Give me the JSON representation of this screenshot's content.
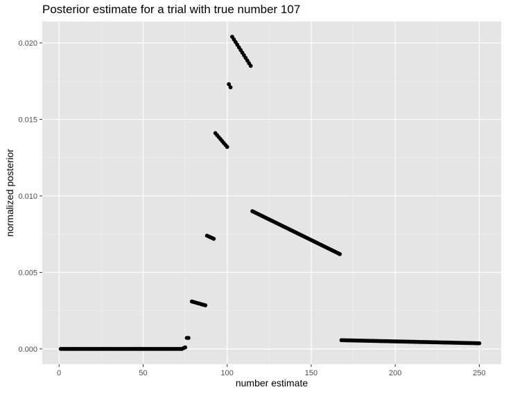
{
  "chart_data": {
    "type": "scatter",
    "title": "Posterior estimate for a trial with true number 107",
    "xlabel": "number estimate",
    "ylabel": "normalized posterior",
    "xlim": [
      -10,
      263
    ],
    "ylim": [
      -0.001,
      0.0214
    ],
    "x_ticks": [
      0,
      50,
      100,
      150,
      200,
      250
    ],
    "x_tick_labels": [
      "0",
      "50",
      "100",
      "150",
      "200",
      "250"
    ],
    "y_ticks": [
      0.0,
      0.005,
      0.01,
      0.015,
      0.02
    ],
    "y_tick_labels": [
      "0.000",
      "0.005",
      "0.010",
      "0.015",
      "0.020"
    ],
    "grid": true,
    "legend": "none",
    "point_color": "#000000",
    "panel_background": "#e5e5e5",
    "grid_color": "#ffffff",
    "segments": [
      {
        "x": [
          1,
          73
        ],
        "y": [
          0.0,
          0.0
        ]
      },
      {
        "x": [
          74,
          75
        ],
        "y": [
          5e-05,
          0.0001
        ]
      },
      {
        "x": [
          76,
          77
        ],
        "y": [
          0.00072,
          0.00072
        ]
      },
      {
        "x": [
          79,
          87
        ],
        "y": [
          0.0031,
          0.00285
        ]
      },
      {
        "x": [
          88,
          92
        ],
        "y": [
          0.0074,
          0.0072
        ]
      },
      {
        "x": [
          93,
          100
        ],
        "y": [
          0.0141,
          0.0132
        ]
      },
      {
        "x": [
          101,
          102
        ],
        "y": [
          0.0173,
          0.0171
        ]
      },
      {
        "x": [
          103,
          114
        ],
        "y": [
          0.0204,
          0.0185
        ]
      },
      {
        "x": [
          115,
          167
        ],
        "y": [
          0.009,
          0.0062
        ]
      },
      {
        "x": [
          168,
          250
        ],
        "y": [
          0.00057,
          0.00037
        ]
      }
    ]
  }
}
